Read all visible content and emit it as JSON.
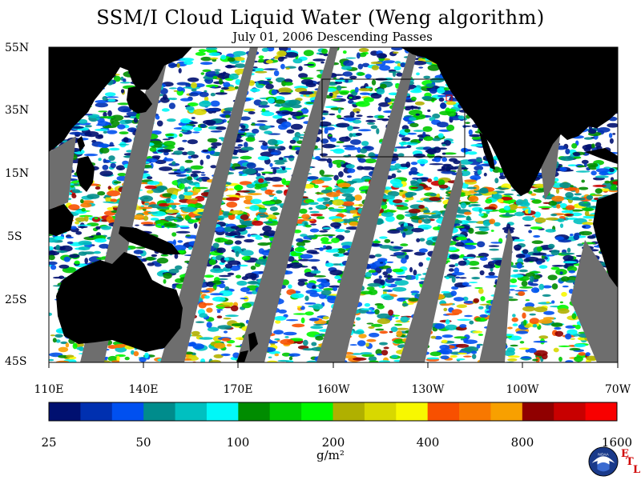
{
  "title": "SSM/I Cloud Liquid Water (Weng algorithm)",
  "subtitle": "July 01, 2006  Descending Passes",
  "lat_labels": [
    "55N",
    "35N",
    "15N",
    "5S",
    "25S",
    "45S"
  ],
  "lon_labels": [
    "110E",
    "140E",
    "170E",
    "160W",
    "130W",
    "100W",
    "70W"
  ],
  "colorbar": {
    "labels": [
      "25",
      "50",
      "100",
      "200",
      "400",
      "800",
      "1600"
    ],
    "unit": "g/m²",
    "colors": [
      "#001070",
      "#0030b0",
      "#0050f0",
      "#008c8c",
      "#00c0c0",
      "#00f8f8",
      "#008c00",
      "#00c800",
      "#00f800",
      "#b0b000",
      "#d8d800",
      "#f8f800",
      "#f85000",
      "#f87800",
      "#f8a000",
      "#900000",
      "#c80000",
      "#f80000"
    ]
  },
  "colors": {
    "land": "#000000",
    "swath_gap": "#6e6e6e",
    "ocean_clear": "#ffffff",
    "etl": "#d00000"
  },
  "logo": {
    "icon": "noaa-logo-icon",
    "text": "NOAA",
    "etl_letters": [
      "E",
      "T",
      "L"
    ]
  }
}
